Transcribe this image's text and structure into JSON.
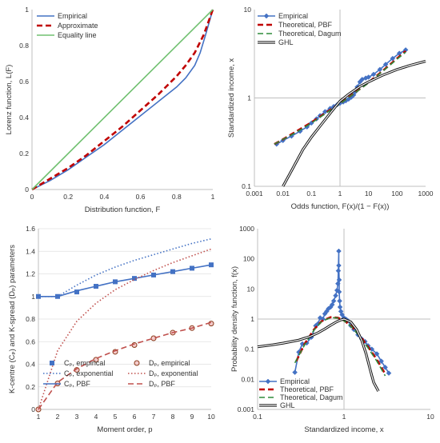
{
  "chart_data": [
    {
      "id": "lorenz",
      "type": "line",
      "xlabel": "Distribution function, F",
      "ylabel": "Lorenz function, L(F)",
      "xlim": [
        0,
        1
      ],
      "ylim": [
        0,
        1
      ],
      "xticks": [
        {
          "v": 0,
          "t": "0"
        },
        {
          "v": 0.2,
          "t": "0.2"
        },
        {
          "v": 0.4,
          "t": "0.4"
        },
        {
          "v": 0.6,
          "t": "0.6"
        },
        {
          "v": 0.8,
          "t": "0.8"
        },
        {
          "v": 1,
          "t": "1"
        }
      ],
      "yticks": [
        {
          "v": 0,
          "t": "0"
        },
        {
          "v": 0.2,
          "t": "0.2"
        },
        {
          "v": 0.4,
          "t": "0.4"
        },
        {
          "v": 0.6,
          "t": "0.6"
        },
        {
          "v": 0.8,
          "t": "0.8"
        },
        {
          "v": 1,
          "t": "1"
        }
      ],
      "legend_position": "top-left",
      "series": [
        {
          "name": "Empirical",
          "color": "#4472c4",
          "style": "solid",
          "x": [
            0,
            0.1,
            0.2,
            0.3,
            0.4,
            0.5,
            0.6,
            0.7,
            0.75,
            0.8,
            0.85,
            0.9,
            0.93,
            0.96,
            1
          ],
          "y": [
            0,
            0.05,
            0.11,
            0.18,
            0.25,
            0.33,
            0.41,
            0.49,
            0.53,
            0.57,
            0.62,
            0.69,
            0.76,
            0.86,
            1
          ]
        },
        {
          "name": "Approximate",
          "color": "#c00000",
          "style": "dashed",
          "x": [
            0,
            0.1,
            0.2,
            0.3,
            0.4,
            0.5,
            0.6,
            0.7,
            0.8,
            0.85,
            0.9,
            0.95,
            1
          ],
          "y": [
            0,
            0.06,
            0.12,
            0.19,
            0.27,
            0.35,
            0.44,
            0.53,
            0.63,
            0.69,
            0.76,
            0.86,
            1
          ]
        },
        {
          "name": "Equality line",
          "color": "#70c070",
          "style": "solid",
          "x": [
            0,
            1
          ],
          "y": [
            0,
            1
          ]
        }
      ]
    },
    {
      "id": "quantile",
      "type": "line",
      "xlabel": "Odds function, F(x)/(1 − F(x))",
      "ylabel": "Standardized income, x",
      "xscale": "log",
      "yscale": "log",
      "xlim": [
        0.001,
        1000
      ],
      "ylim": [
        0.1,
        10
      ],
      "xticks": [
        {
          "v": 0.001,
          "t": "0.001"
        },
        {
          "v": 0.01,
          "t": "0.01"
        },
        {
          "v": 0.1,
          "t": "0.1"
        },
        {
          "v": 1,
          "t": "1"
        },
        {
          "v": 10,
          "t": "10"
        },
        {
          "v": 100,
          "t": "100"
        },
        {
          "v": 1000,
          "t": "1000"
        }
      ],
      "yticks": [
        {
          "v": 0.1,
          "t": "0.1"
        },
        {
          "v": 1,
          "t": "1"
        },
        {
          "v": 10,
          "t": "10"
        }
      ],
      "legend_position": "top-left",
      "series": [
        {
          "name": "Empirical",
          "color": "#4472c4",
          "style": "solid",
          "marker": "diamond",
          "x": [
            0.006,
            0.01,
            0.02,
            0.04,
            0.07,
            0.1,
            0.15,
            0.2,
            0.3,
            0.45,
            0.6,
            0.8,
            1,
            1.3,
            1.6,
            2,
            2.5,
            3,
            3.5,
            4,
            5,
            6,
            8,
            10,
            15,
            25,
            40,
            70,
            120,
            200
          ],
          "y": [
            0.3,
            0.33,
            0.37,
            0.42,
            0.47,
            0.52,
            0.58,
            0.63,
            0.7,
            0.76,
            0.8,
            0.84,
            0.87,
            0.9,
            0.93,
            0.97,
            1.02,
            1.08,
            1.18,
            1.33,
            1.52,
            1.62,
            1.68,
            1.72,
            1.85,
            2.1,
            2.4,
            2.8,
            3.2,
            3.5
          ]
        },
        {
          "name": "Theoretical, PBF",
          "color": "#c00000",
          "style": "dashed",
          "x": [
            0.005,
            0.01,
            0.03,
            0.1,
            0.3,
            1,
            3,
            10,
            30,
            100,
            200
          ],
          "y": [
            0.3,
            0.34,
            0.42,
            0.53,
            0.67,
            0.87,
            1.12,
            1.5,
            2.0,
            2.8,
            3.4
          ]
        },
        {
          "name": "Theoretical, Dagum",
          "color": "#2e8b3a",
          "style": "dashed",
          "x": [
            0.005,
            0.01,
            0.03,
            0.1,
            0.3,
            1,
            3,
            10,
            30,
            100,
            200
          ],
          "y": [
            0.3,
            0.34,
            0.41,
            0.52,
            0.66,
            0.86,
            1.11,
            1.48,
            1.98,
            2.75,
            3.3
          ]
        },
        {
          "name": "GHL",
          "color": "#111111",
          "style": "double",
          "x": [
            0.01,
            0.02,
            0.05,
            0.1,
            0.2,
            0.5,
            1,
            2,
            5,
            10,
            30,
            100,
            300,
            1000
          ],
          "y": [
            0.1,
            0.15,
            0.26,
            0.36,
            0.48,
            0.7,
            0.92,
            1.1,
            1.35,
            1.52,
            1.8,
            2.1,
            2.35,
            2.6
          ]
        }
      ]
    },
    {
      "id": "kcentre",
      "type": "line",
      "xlabel": "Moment order, p",
      "ylabel": "K-centre (Cₚ) and K-spread (Dₚ) parameters",
      "xlim": [
        1,
        10
      ],
      "ylim": [
        0,
        1.6
      ],
      "xticks": [
        {
          "v": 1,
          "t": "1"
        },
        {
          "v": 2,
          "t": "2"
        },
        {
          "v": 3,
          "t": "3"
        },
        {
          "v": 4,
          "t": "4"
        },
        {
          "v": 5,
          "t": "5"
        },
        {
          "v": 6,
          "t": "6"
        },
        {
          "v": 7,
          "t": "7"
        },
        {
          "v": 8,
          "t": "8"
        },
        {
          "v": 9,
          "t": "9"
        },
        {
          "v": 10,
          "t": "10"
        }
      ],
      "yticks": [
        {
          "v": 0,
          "t": "0"
        },
        {
          "v": 0.2,
          "t": "0.2"
        },
        {
          "v": 0.4,
          "t": "0.4"
        },
        {
          "v": 0.6,
          "t": "0.6"
        },
        {
          "v": 0.8,
          "t": "0.8"
        },
        {
          "v": 1,
          "t": "1"
        },
        {
          "v": 1.2,
          "t": "1.2"
        },
        {
          "v": 1.4,
          "t": "1.4"
        },
        {
          "v": 1.6,
          "t": "1.6"
        }
      ],
      "legend_position": "bottom-right",
      "series": [
        {
          "name": "Cₚ, empirical",
          "color": "#4472c4",
          "style": "none",
          "marker": "square",
          "x": [
            1,
            2,
            3,
            4,
            5,
            6,
            7,
            8,
            9,
            10
          ],
          "y": [
            1,
            1,
            1.04,
            1.09,
            1.13,
            1.16,
            1.19,
            1.22,
            1.25,
            1.28
          ]
        },
        {
          "name": "Cₚ, exponential",
          "color": "#4472c4",
          "style": "dotted",
          "x": [
            1,
            2,
            3,
            4,
            5,
            6,
            7,
            8,
            9,
            10
          ],
          "y": [
            1,
            1,
            1.1,
            1.19,
            1.26,
            1.32,
            1.37,
            1.42,
            1.47,
            1.51
          ]
        },
        {
          "name": "Cₚ, PBF",
          "color": "#4472c4",
          "style": "solid",
          "x": [
            1,
            2,
            3,
            4,
            5,
            6,
            7,
            8,
            9,
            10
          ],
          "y": [
            1,
            1,
            1.05,
            1.09,
            1.13,
            1.16,
            1.19,
            1.22,
            1.25,
            1.28
          ]
        },
        {
          "name": "Dₚ, empirical",
          "color": "#c0504d",
          "style": "none",
          "marker": "circle",
          "x": [
            1,
            2,
            3,
            4,
            5,
            6,
            7,
            8,
            9,
            10
          ],
          "y": [
            0,
            0.23,
            0.35,
            0.44,
            0.51,
            0.57,
            0.63,
            0.68,
            0.72,
            0.76
          ]
        },
        {
          "name": "Dₚ, exponential",
          "color": "#c0504d",
          "style": "dotted",
          "x": [
            1,
            2,
            3,
            4,
            5,
            6,
            7,
            8,
            9,
            10
          ],
          "y": [
            0,
            0.52,
            0.78,
            0.94,
            1.06,
            1.15,
            1.23,
            1.3,
            1.36,
            1.42
          ]
        },
        {
          "name": "Dₚ, PBF",
          "color": "#c0504d",
          "style": "dashed",
          "x": [
            1,
            2,
            3,
            4,
            5,
            6,
            7,
            8,
            9,
            10
          ],
          "y": [
            0,
            0.24,
            0.36,
            0.45,
            0.52,
            0.58,
            0.63,
            0.68,
            0.72,
            0.77
          ]
        }
      ]
    },
    {
      "id": "pdf",
      "type": "line",
      "xlabel": "Standardized income, x",
      "ylabel": "Probability density function, f(x)",
      "xscale": "log",
      "yscale": "log",
      "xlim": [
        0.1,
        10
      ],
      "ylim": [
        0.001,
        1000
      ],
      "xticks": [
        {
          "v": 0.1,
          "t": "0.1"
        },
        {
          "v": 1,
          "t": "1"
        },
        {
          "v": 10,
          "t": "10"
        }
      ],
      "yticks": [
        {
          "v": 0.001,
          "t": "0.001"
        },
        {
          "v": 0.01,
          "t": "0.01"
        },
        {
          "v": 0.1,
          "t": "0.1"
        },
        {
          "v": 1,
          "t": "1"
        },
        {
          "v": 10,
          "t": "10"
        },
        {
          "v": 100,
          "t": "100"
        },
        {
          "v": 1000,
          "t": "1000"
        }
      ],
      "legend_position": "bottom-left",
      "series": [
        {
          "name": "Empirical",
          "color": "#4472c4",
          "style": "solid",
          "marker": "diamond",
          "x": [
            0.27,
            0.3,
            0.33,
            0.37,
            0.42,
            0.47,
            0.5,
            0.53,
            0.57,
            0.6,
            0.63,
            0.66,
            0.7,
            0.73,
            0.76,
            0.8,
            0.83,
            0.85,
            0.86,
            0.87,
            0.87,
            0.88,
            0.88,
            0.89,
            0.9,
            0.92,
            0.95,
            1.0,
            1.05,
            1.1,
            1.2,
            1.3,
            1.45,
            1.6,
            1.75,
            1.9,
            2.1,
            2.4,
            2.7,
            3.0,
            3.3
          ],
          "y": [
            0.017,
            0.08,
            0.15,
            0.16,
            0.25,
            0.6,
            0.7,
            1.1,
            1.0,
            1.5,
            1.8,
            2.2,
            2.5,
            3.0,
            4.0,
            6.0,
            9.0,
            15,
            40,
            180,
            60,
            20,
            8,
            4,
            2.5,
            1.8,
            1.4,
            1.1,
            1.0,
            0.9,
            0.6,
            0.45,
            0.3,
            0.22,
            0.18,
            0.13,
            0.1,
            0.07,
            0.04,
            0.025,
            0.016
          ]
        },
        {
          "name": "Theoretical, PBF",
          "color": "#c00000",
          "style": "dashed",
          "x": [
            0.28,
            0.35,
            0.45,
            0.55,
            0.7,
            0.85,
            1.0,
            1.2,
            1.5,
            1.9,
            2.4,
            3.0
          ],
          "y": [
            0.04,
            0.15,
            0.45,
            0.85,
            1.15,
            1.1,
            0.9,
            0.6,
            0.3,
            0.12,
            0.045,
            0.015
          ]
        },
        {
          "name": "Theoretical, Dagum",
          "color": "#2e8b3a",
          "style": "dashed",
          "x": [
            0.27,
            0.35,
            0.45,
            0.55,
            0.7,
            0.85,
            1.0,
            1.2,
            1.5,
            1.9,
            2.4,
            3.0
          ],
          "y": [
            0.035,
            0.14,
            0.43,
            0.82,
            1.12,
            1.08,
            0.88,
            0.58,
            0.28,
            0.11,
            0.04,
            0.013
          ]
        },
        {
          "name": "GHL",
          "color": "#111111",
          "style": "double",
          "x": [
            0.1,
            0.15,
            0.2,
            0.3,
            0.4,
            0.5,
            0.6,
            0.7,
            0.8,
            0.9,
            1.0,
            1.2,
            1.4,
            1.6,
            1.8,
            2.0,
            2.2,
            2.5
          ],
          "y": [
            0.12,
            0.14,
            0.16,
            0.2,
            0.26,
            0.35,
            0.47,
            0.62,
            0.78,
            0.92,
            1.0,
            0.8,
            0.45,
            0.2,
            0.07,
            0.022,
            0.008,
            0.004
          ]
        }
      ]
    }
  ]
}
